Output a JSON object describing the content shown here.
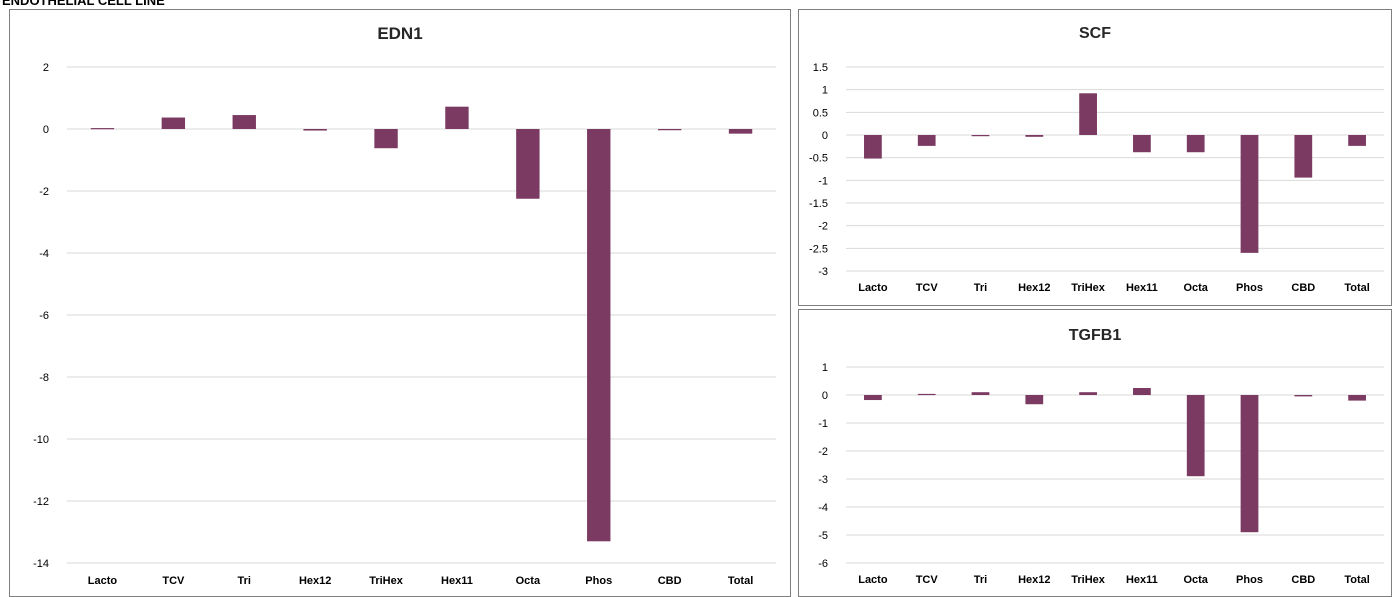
{
  "page_header": "ENDOTHELIAL CELL LINE",
  "colors": {
    "bar": "#7b3a62",
    "grid": "#d9d9d9",
    "border": "#7f7f7f"
  },
  "chart_data": [
    {
      "type": "bar",
      "title": "EDN1",
      "categories": [
        "Lacto",
        "TCV",
        "Tri",
        "Hex12",
        "TriHex",
        "Hex11",
        "Octa",
        "Phos",
        "CBD",
        "Total"
      ],
      "values": [
        0.03,
        0.37,
        0.45,
        -0.05,
        -0.62,
        0.72,
        -2.25,
        -13.3,
        -0.04,
        -0.15
      ],
      "ylim": [
        -14,
        2
      ],
      "yticks": [
        2,
        0,
        -2,
        -4,
        -6,
        -8,
        -10,
        -12,
        -14
      ],
      "grid": true,
      "legend": "none"
    },
    {
      "type": "bar",
      "title": "SCF",
      "categories": [
        "Lacto",
        "TCV",
        "Tri",
        "Hex12",
        "TriHex",
        "Hex11",
        "Octa",
        "Phos",
        "CBD",
        "Total"
      ],
      "values": [
        -0.52,
        -0.24,
        0.0,
        -0.04,
        0.92,
        -0.38,
        -0.38,
        -2.6,
        -0.94,
        -0.24
      ],
      "ylim": [
        -3,
        1.5
      ],
      "yticks": [
        1.5,
        1,
        0.5,
        0,
        -0.5,
        -1,
        -1.5,
        -2,
        -2.5,
        -3
      ],
      "grid": true,
      "legend": "none"
    },
    {
      "type": "bar",
      "title": "TGFB1",
      "categories": [
        "Lacto",
        "TCV",
        "Tri",
        "Hex12",
        "TriHex",
        "Hex11",
        "Octa",
        "Phos",
        "CBD",
        "Total"
      ],
      "values": [
        -0.18,
        0.04,
        0.1,
        -0.33,
        0.1,
        0.25,
        -2.9,
        -4.9,
        -0.05,
        -0.2
      ],
      "ylim": [
        -6,
        1
      ],
      "yticks": [
        1,
        0,
        -1,
        -2,
        -3,
        -4,
        -5,
        -6
      ],
      "grid": true,
      "legend": "none"
    }
  ]
}
